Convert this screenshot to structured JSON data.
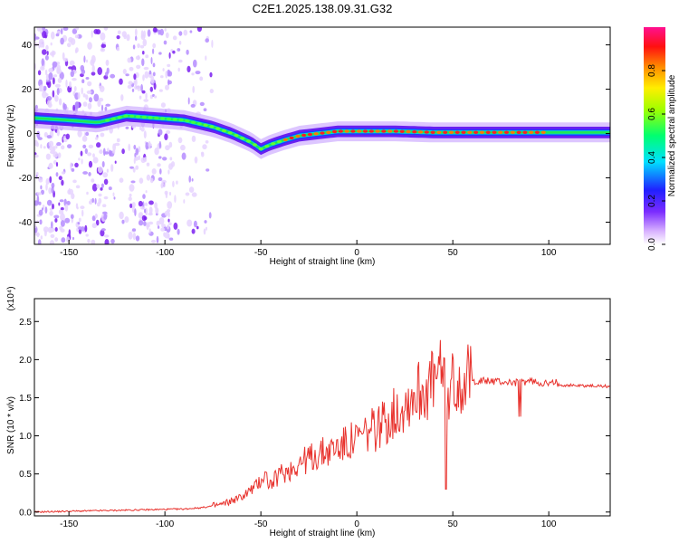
{
  "title": "C2E1.2025.138.09.31.G32",
  "chart_data": [
    {
      "type": "heatmap",
      "xlabel": "Height of straight line (km)",
      "ylabel": "Frequency (Hz)",
      "xlim": [
        -168,
        132
      ],
      "ylim": [
        -50,
        48
      ],
      "xticks": [
        "-150",
        "-100",
        "-50",
        "0",
        "50",
        "100"
      ],
      "yticks": [
        "40",
        "20",
        "0",
        "-20",
        "-40"
      ],
      "colorbar": {
        "label": "Normalized spectral amplitude",
        "range": [
          0,
          1
        ],
        "ticks": [
          "0.0",
          "0.2",
          "0.4",
          "0.6",
          "0.8"
        ]
      },
      "ridge": {
        "x": [
          -168,
          -150,
          -135,
          -120,
          -105,
          -90,
          -75,
          -65,
          -55,
          -50,
          -45,
          -38,
          -30,
          -20,
          -10,
          0,
          20,
          40,
          60,
          80,
          100,
          132
        ],
        "y": [
          7,
          6,
          5,
          8,
          7,
          6,
          3,
          0,
          -4,
          -7,
          -5,
          -3,
          -1,
          0,
          1,
          1,
          1,
          0.5,
          0.5,
          0.5,
          0.5,
          0.5
        ]
      },
      "noise_region_x": [
        -168,
        -75
      ]
    },
    {
      "type": "line",
      "xlabel": "Height of straight line (km)",
      "ylabel": "SNR (10 * v/v)",
      "y_multiplier": "(x10⁴)",
      "xlim": [
        -168,
        132
      ],
      "ylim": [
        -0.05,
        2.8
      ],
      "xticks": [
        "-150",
        "-100",
        "-50",
        "0",
        "50",
        "100"
      ],
      "yticks": [
        "0.0",
        "0.5",
        "1.0",
        "1.5",
        "2.0",
        "2.5"
      ],
      "series": [
        {
          "color": "#e8332e",
          "x": [
            -168,
            -150,
            -130,
            -110,
            -90,
            -80,
            -70,
            -60,
            -52,
            -48,
            -45,
            -40,
            -35,
            -30,
            -20,
            -10,
            0,
            10,
            20,
            30,
            40,
            45,
            47,
            50,
            55,
            60,
            65,
            70,
            80,
            85,
            90,
            95,
            100,
            104,
            106,
            115,
            132
          ],
          "y": [
            0.0,
            0.01,
            0.02,
            0.03,
            0.04,
            0.06,
            0.1,
            0.2,
            0.35,
            0.5,
            0.35,
            0.5,
            0.55,
            0.65,
            0.75,
            0.85,
            0.95,
            1.1,
            1.3,
            1.55,
            1.7,
            1.8,
            1.6,
            1.7,
            1.75,
            1.72,
            1.72,
            1.72,
            1.7,
            1.7,
            1.72,
            1.7,
            1.68,
            1.7,
            1.67,
            1.66,
            1.65
          ]
        }
      ]
    }
  ]
}
